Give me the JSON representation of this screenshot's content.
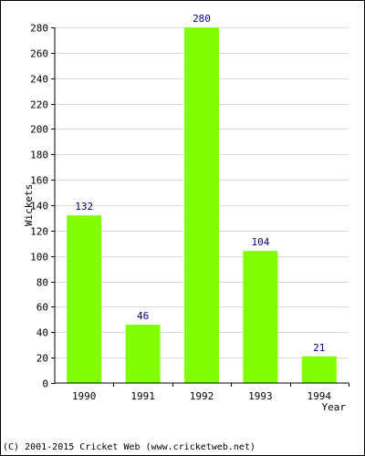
{
  "chart_data": {
    "type": "bar",
    "categories": [
      "1990",
      "1991",
      "1992",
      "1993",
      "1994"
    ],
    "values": [
      132,
      46,
      280,
      104,
      21
    ],
    "data_labels": [
      "132",
      "46",
      "280",
      "104",
      "21"
    ],
    "ylabel": "Wickets",
    "xlabel": "Year",
    "ylim": [
      0,
      280
    ],
    "yticks": [
      0,
      20,
      40,
      60,
      80,
      100,
      120,
      140,
      160,
      180,
      200,
      220,
      240,
      260,
      280
    ],
    "grid": true,
    "bar_color": "#80ff00",
    "label_color": "#000080"
  },
  "footer": "(C) 2001-2015 Cricket Web (www.cricketweb.net)"
}
